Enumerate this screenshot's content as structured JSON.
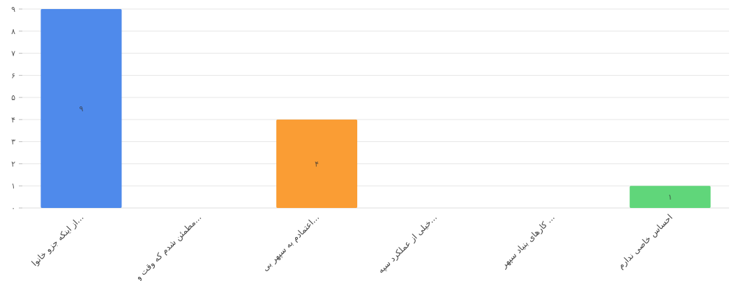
{
  "chart_data": {
    "type": "bar",
    "categories": [
      "از اینکه جزو خانوا...",
      "مطمئن شدم که وقت و...",
      "اعتمادم به سپهر بی...",
      "خیلی از عملکرد سپه...",
      "کارهای بنیاد سپهر ...",
      "احساس خاصی ندارم"
    ],
    "values": [
      9,
      0,
      4,
      0,
      0,
      1
    ],
    "value_labels": [
      "۹",
      "",
      "۴",
      "",
      "",
      "۱"
    ],
    "colors": [
      "#4f8aeb",
      "#4f8aeb",
      "#fa9d34",
      "#fa9d34",
      "#fa9d34",
      "#60d67a"
    ],
    "ylim": [
      0,
      9
    ],
    "y_ticks": [
      0,
      1,
      2,
      3,
      4,
      5,
      6,
      7,
      8,
      9
    ],
    "y_tick_labels": [
      "۰",
      "۱",
      "۲",
      "۳",
      "۴",
      "۵",
      "۶",
      "۷",
      "۸",
      "۹"
    ],
    "grid": true,
    "title": "",
    "xlabel": "",
    "ylabel": ""
  }
}
